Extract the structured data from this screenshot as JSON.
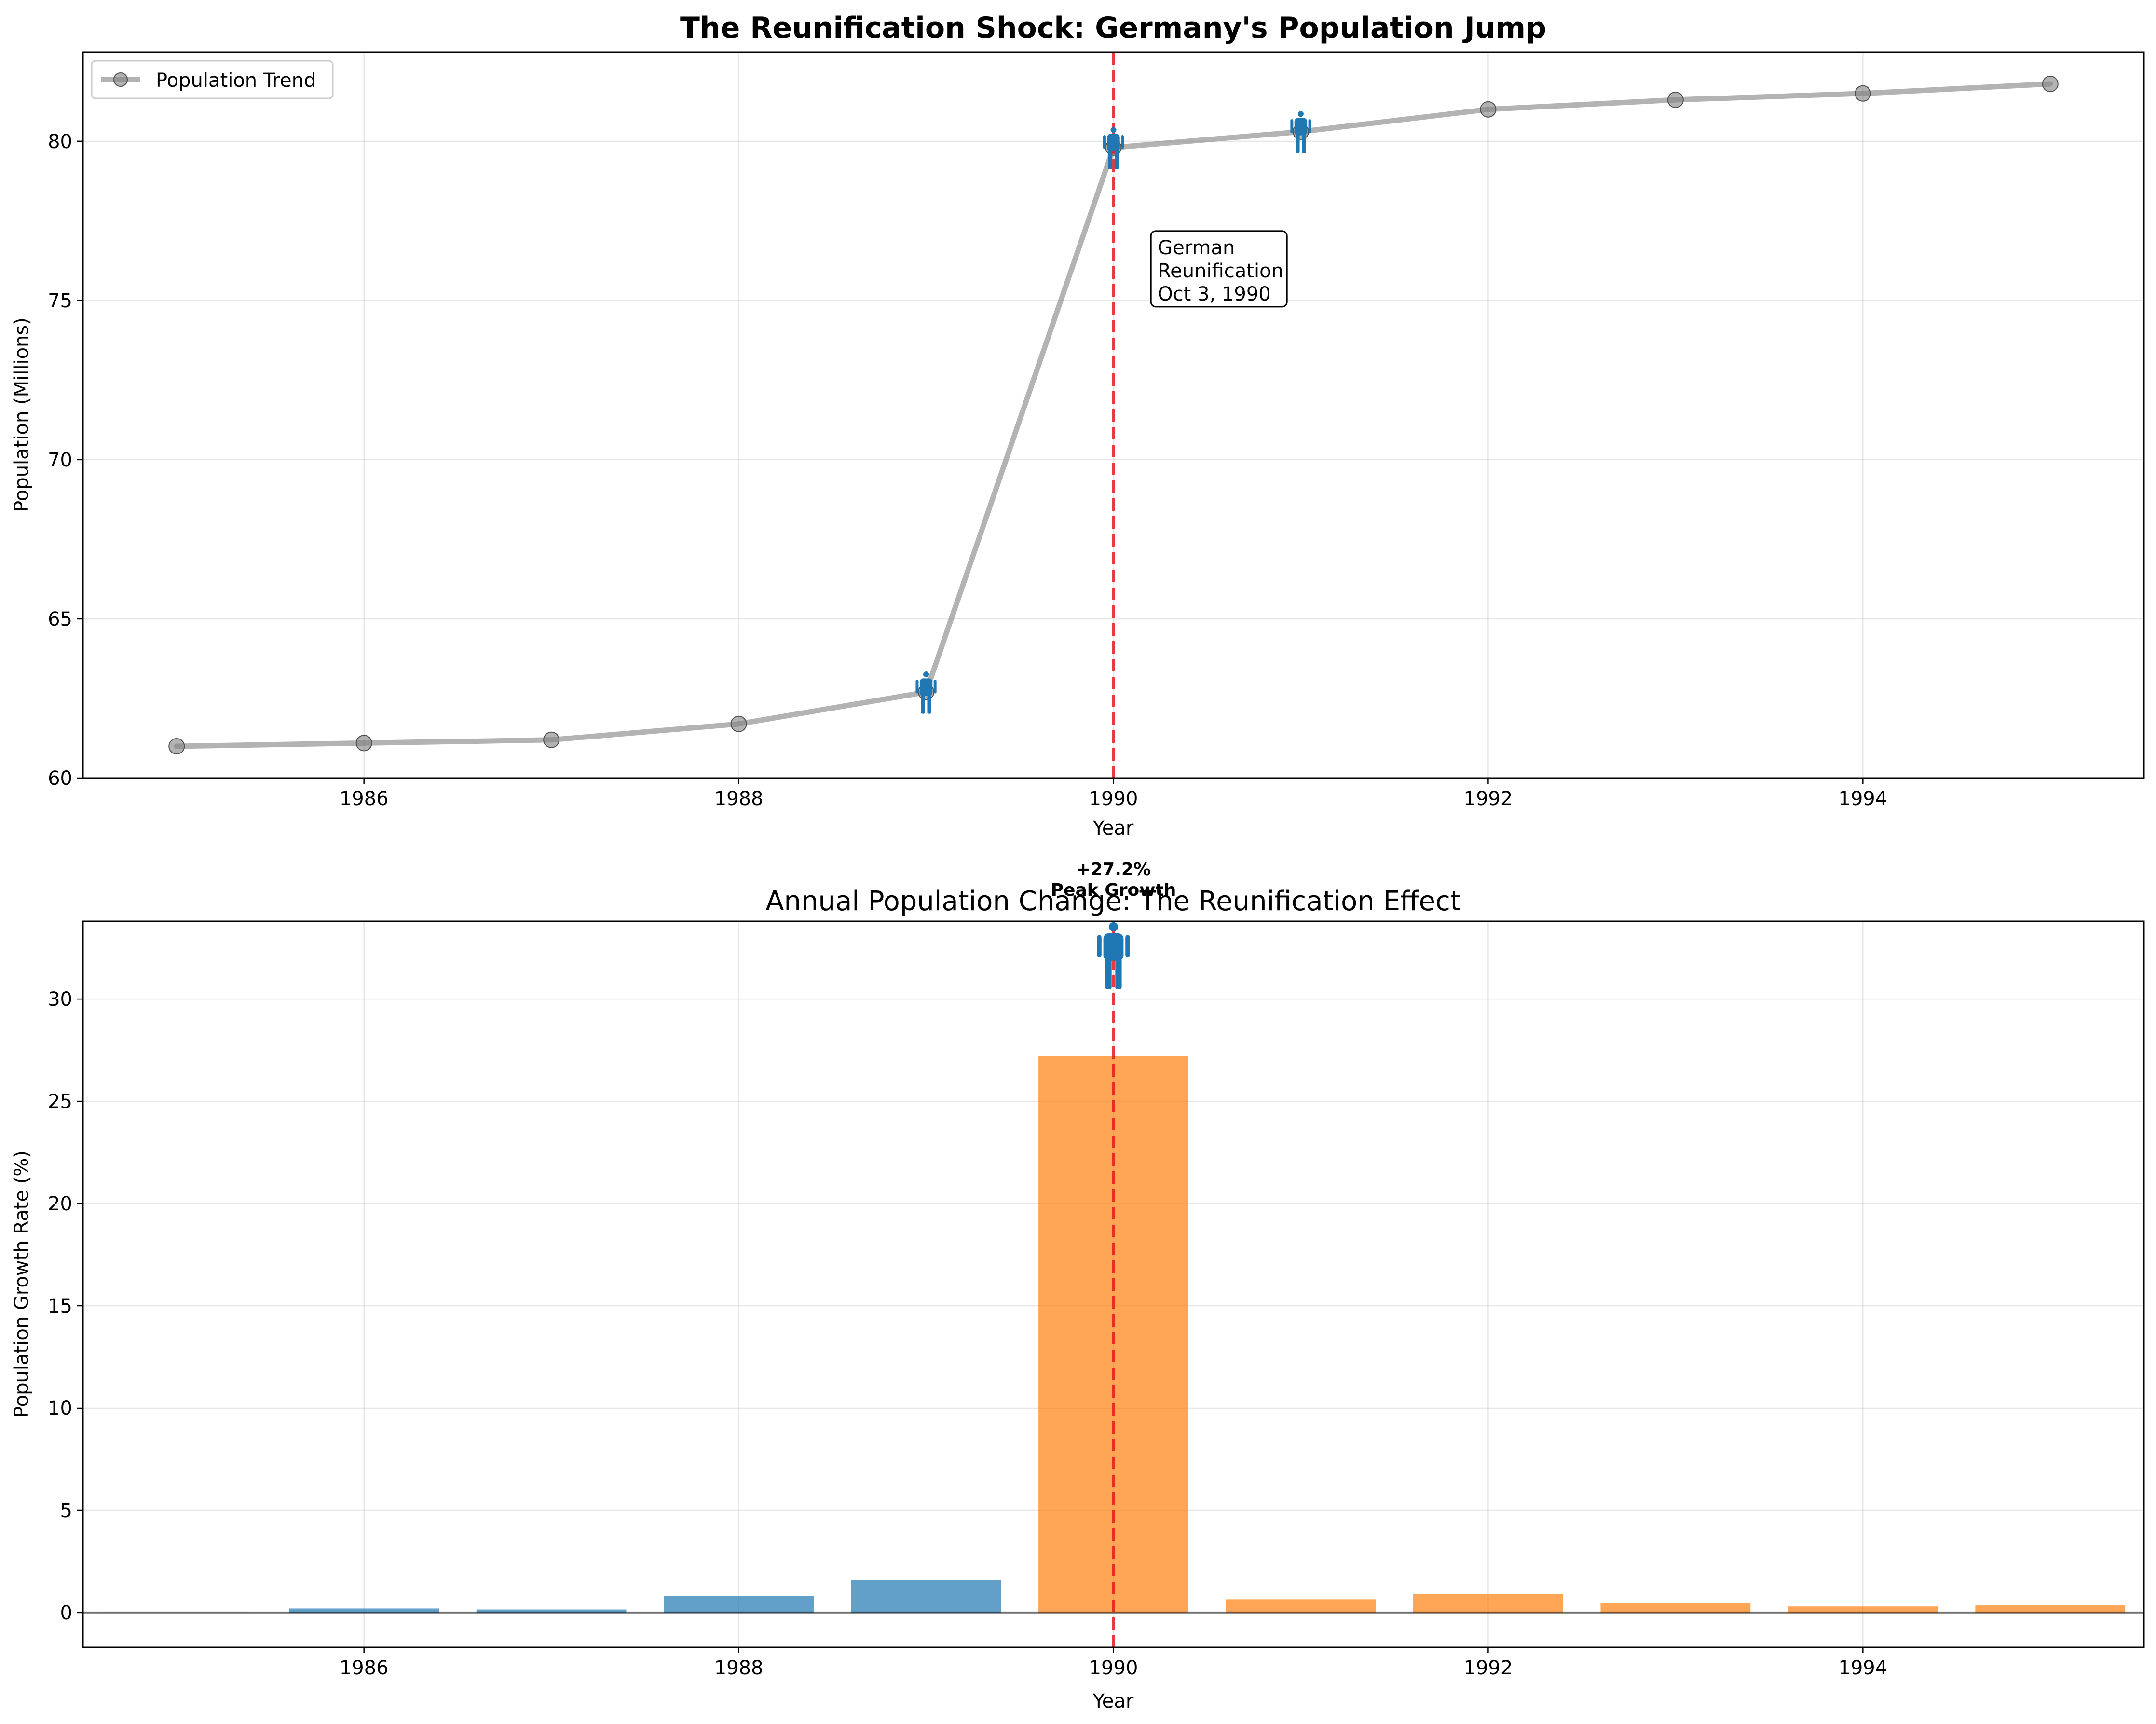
{
  "chart_data": [
    {
      "type": "line",
      "title": "The Reunification Shock: Germany's Population Jump",
      "xlabel": "Year",
      "ylabel": "Population (Millions)",
      "xlim": [
        1984.5,
        1995.5
      ],
      "ylim": [
        60,
        82.8
      ],
      "x_ticks": [
        1986,
        1988,
        1990,
        1992,
        1994
      ],
      "y_ticks": [
        60,
        65,
        70,
        75,
        80
      ],
      "grid": true,
      "legend_position": "upper-left",
      "series": [
        {
          "name": "Population Trend",
          "color": "#808080",
          "x": [
            1985,
            1986,
            1987,
            1988,
            1989,
            1990,
            1991,
            1992,
            1993,
            1994,
            1995
          ],
          "values": [
            61.0,
            61.1,
            61.2,
            61.7,
            62.7,
            79.8,
            80.3,
            81.0,
            81.3,
            81.5,
            81.8
          ]
        }
      ],
      "person_icon_years": [
        1989,
        1990,
        1991
      ],
      "icon_color": "#1f77b4",
      "reunification_line": {
        "x": 1990,
        "color": "#e41a1c"
      },
      "annotation": {
        "text": [
          "German",
          "Reunification",
          "Oct 3, 1990"
        ],
        "x": 1990.2,
        "y": 75
      }
    },
    {
      "type": "bar",
      "title": "Annual Population Change: The Reunification Effect",
      "xlabel": "Year",
      "ylabel": "Population Growth Rate (%)",
      "xlim": [
        1984.5,
        1995.5
      ],
      "ylim": [
        -1.7,
        33.8
      ],
      "x_ticks": [
        1986,
        1988,
        1990,
        1992,
        1994
      ],
      "y_ticks": [
        0,
        5,
        10,
        15,
        20,
        25,
        30
      ],
      "grid": true,
      "categories": [
        1985,
        1986,
        1987,
        1988,
        1989,
        1990,
        1991,
        1992,
        1993,
        1994,
        1995
      ],
      "values": [
        0.0,
        0.2,
        0.15,
        0.8,
        1.6,
        27.2,
        0.65,
        0.9,
        0.45,
        0.3,
        0.35
      ],
      "pre_color": "#1f77b4",
      "post_color": "#ff7f0e",
      "split_year": 1990,
      "reunification_line": {
        "x": 1990,
        "color": "#e41a1c"
      },
      "peak_label": [
        "+27.2%",
        "Peak Growth"
      ],
      "peak_icon_year": 1990,
      "icon_color": "#1f77b4"
    }
  ]
}
